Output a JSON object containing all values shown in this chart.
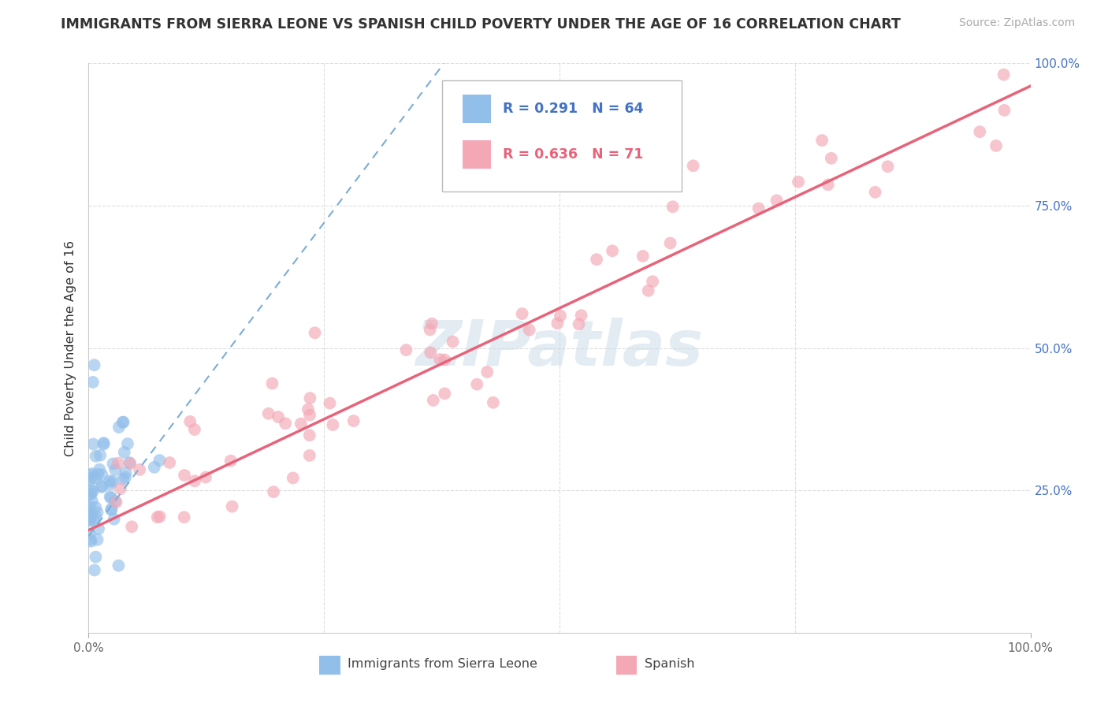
{
  "title": "IMMIGRANTS FROM SIERRA LEONE VS SPANISH CHILD POVERTY UNDER THE AGE OF 16 CORRELATION CHART",
  "source": "Source: ZipAtlas.com",
  "ylabel": "Child Poverty Under the Age of 16",
  "xlim": [
    0,
    1.0
  ],
  "ylim": [
    0,
    1.0
  ],
  "blue_R": 0.291,
  "blue_N": 64,
  "pink_R": 0.636,
  "pink_N": 71,
  "blue_color": "#92BFEA",
  "pink_color": "#F4A7B5",
  "blue_line_color": "#7AADD6",
  "pink_line_color": "#E8637A",
  "grid_color": "#DDDDDD",
  "right_tick_color": "#4472C4",
  "watermark_color": "#C8D8E8",
  "blue_line_slope": 2.2,
  "blue_line_intercept": 0.17,
  "pink_line_slope": 0.78,
  "pink_line_intercept": 0.18
}
